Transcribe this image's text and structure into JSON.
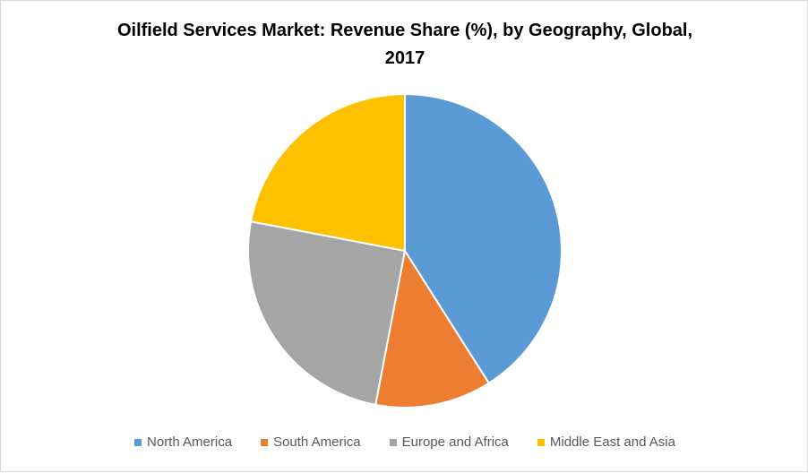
{
  "chart_data": {
    "type": "pie",
    "title_lines": [
      "Oilfield Services Market: Revenue Share (%), by Geography, Global,",
      "2017"
    ],
    "series": [
      {
        "name": "North America",
        "value": 41,
        "color": "#5B9BD5"
      },
      {
        "name": "South America",
        "value": 12,
        "color": "#ED7D31"
      },
      {
        "name": "Europe and Africa",
        "value": 25,
        "color": "#A5A5A5"
      },
      {
        "name": "Middle East and Asia",
        "value": 22,
        "color": "#FFC000"
      }
    ],
    "start_angle": "12 o'clock",
    "direction": "clockwise",
    "legend_position": "bottom",
    "data_labels": false
  }
}
